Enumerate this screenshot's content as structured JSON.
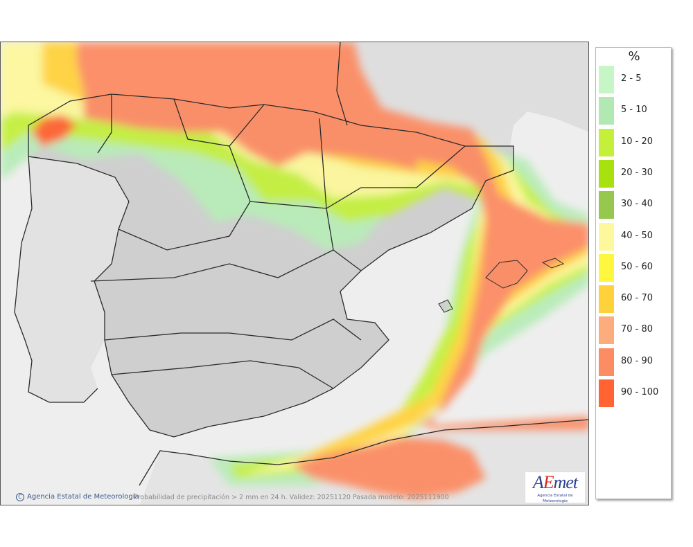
{
  "legend": {
    "title": "%",
    "classes": [
      {
        "label": "2 - 5",
        "color": "#c6f6c6"
      },
      {
        "label": "5 - 10",
        "color": "#b2e8b2"
      },
      {
        "label": "10 - 20",
        "color": "#c4f03c"
      },
      {
        "label": "20 - 30",
        "color": "#a8e010"
      },
      {
        "label": "30 - 40",
        "color": "#96c850"
      },
      {
        "label": "40 - 50",
        "color": "#fdf89c"
      },
      {
        "label": "50 - 60",
        "color": "#fff640"
      },
      {
        "label": "60 - 70",
        "color": "#ffd23c"
      },
      {
        "label": "70 - 80",
        "color": "#fdac7e"
      },
      {
        "label": "80 - 90",
        "color": "#fc8c64"
      },
      {
        "label": "90 - 100",
        "color": "#ff6432"
      }
    ]
  },
  "footer": {
    "credit": "Agencia Estatal de Meteorología",
    "caption": "Probabilidad de precipitación > 2 mm en 24 h. Validez: 20251120 Pasada modelo: 2025111900"
  },
  "logo": {
    "word_a": "A",
    "word_e": "E",
    "word_rest": "met",
    "subtitle": "Agencia Estatal de Meteorología"
  },
  "colors": {
    "land": "#cfcfcf",
    "sea": "#eeeeee",
    "border": "#2a2a2a"
  }
}
